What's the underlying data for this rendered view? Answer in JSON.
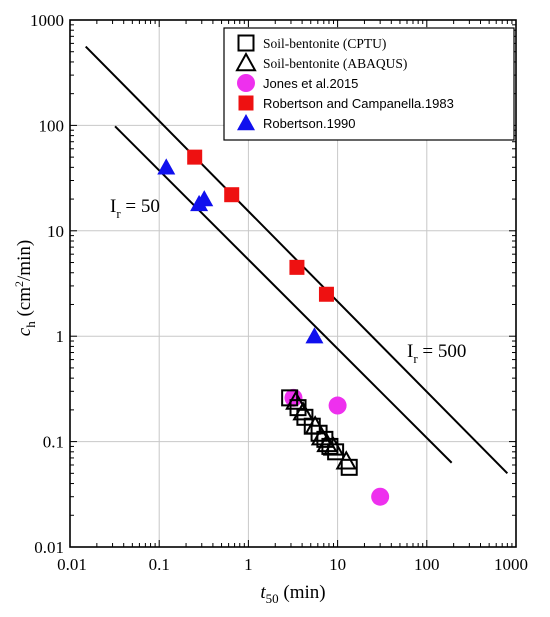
{
  "chart_data": {
    "type": "scatter",
    "x_scale": "log",
    "y_scale": "log",
    "xlim": [
      0.01,
      1000
    ],
    "ylim": [
      0.01,
      1000
    ],
    "grid": true,
    "legend_position": "top-right",
    "xlabel": {
      "main": "t",
      "sub": "50",
      "rest": " (min)"
    },
    "ylabel": {
      "main": "c",
      "sub": "h",
      "rest1": " (cm",
      "sup": "2",
      "rest2": "/min)"
    },
    "x_ticks": [
      0.01,
      0.1,
      1,
      10,
      100,
      1000
    ],
    "x_tick_labels": [
      "0.01",
      "0.1",
      "1",
      "10",
      "100",
      "1000"
    ],
    "y_ticks": [
      0.01,
      0.1,
      1,
      10,
      100,
      1000
    ],
    "y_tick_labels": [
      "0.01",
      "0.1",
      "1",
      "10",
      "100",
      "1000"
    ],
    "series": [
      {
        "name": "Soil-bentonite (CPTU)",
        "marker": "square-open",
        "color": "#000000",
        "points": [
          [
            2.9,
            0.26
          ],
          [
            3.6,
            0.21
          ],
          [
            4.3,
            0.17
          ],
          [
            5.2,
            0.14
          ],
          [
            6.2,
            0.12
          ],
          [
            7.2,
            0.105
          ],
          [
            8.2,
            0.09
          ],
          [
            9.5,
            0.08
          ],
          [
            13.5,
            0.057
          ]
        ]
      },
      {
        "name": "Soil-bentonite (ABAQUS)",
        "marker": "triangle-open",
        "color": "#000000",
        "points": [
          [
            3.4,
            0.24
          ],
          [
            4.1,
            0.19
          ],
          [
            5.6,
            0.14
          ],
          [
            6.6,
            0.11
          ],
          [
            7.6,
            0.095
          ],
          [
            9.0,
            0.088
          ],
          [
            12.5,
            0.065
          ]
        ]
      },
      {
        "name": "Jones et al.2015",
        "marker": "circle",
        "color": "#ee30ee",
        "points": [
          [
            3.2,
            0.26
          ],
          [
            10.0,
            0.22
          ],
          [
            30.0,
            0.03
          ]
        ]
      },
      {
        "name": "Robertson and Campanella.1983",
        "marker": "square",
        "color": "#ee1111",
        "points": [
          [
            0.25,
            50
          ],
          [
            0.65,
            22
          ],
          [
            3.5,
            4.5
          ],
          [
            7.5,
            2.5
          ]
        ]
      },
      {
        "name": "Robertson.1990",
        "marker": "triangle",
        "color": "#1010ee",
        "points": [
          [
            0.12,
            40
          ],
          [
            0.28,
            18
          ],
          [
            0.32,
            20
          ],
          [
            5.5,
            1.0
          ]
        ]
      }
    ],
    "reference_lines": [
      {
        "label_main": "I",
        "label_sub": "r",
        "label_rest": " = 50",
        "from": [
          0.032,
          98
        ],
        "to": [
          190,
          0.063
        ]
      },
      {
        "label_main": "I",
        "label_sub": "r",
        "label_rest": " = 500",
        "from": [
          0.015,
          560
        ],
        "to": [
          800,
          0.05
        ]
      }
    ]
  }
}
